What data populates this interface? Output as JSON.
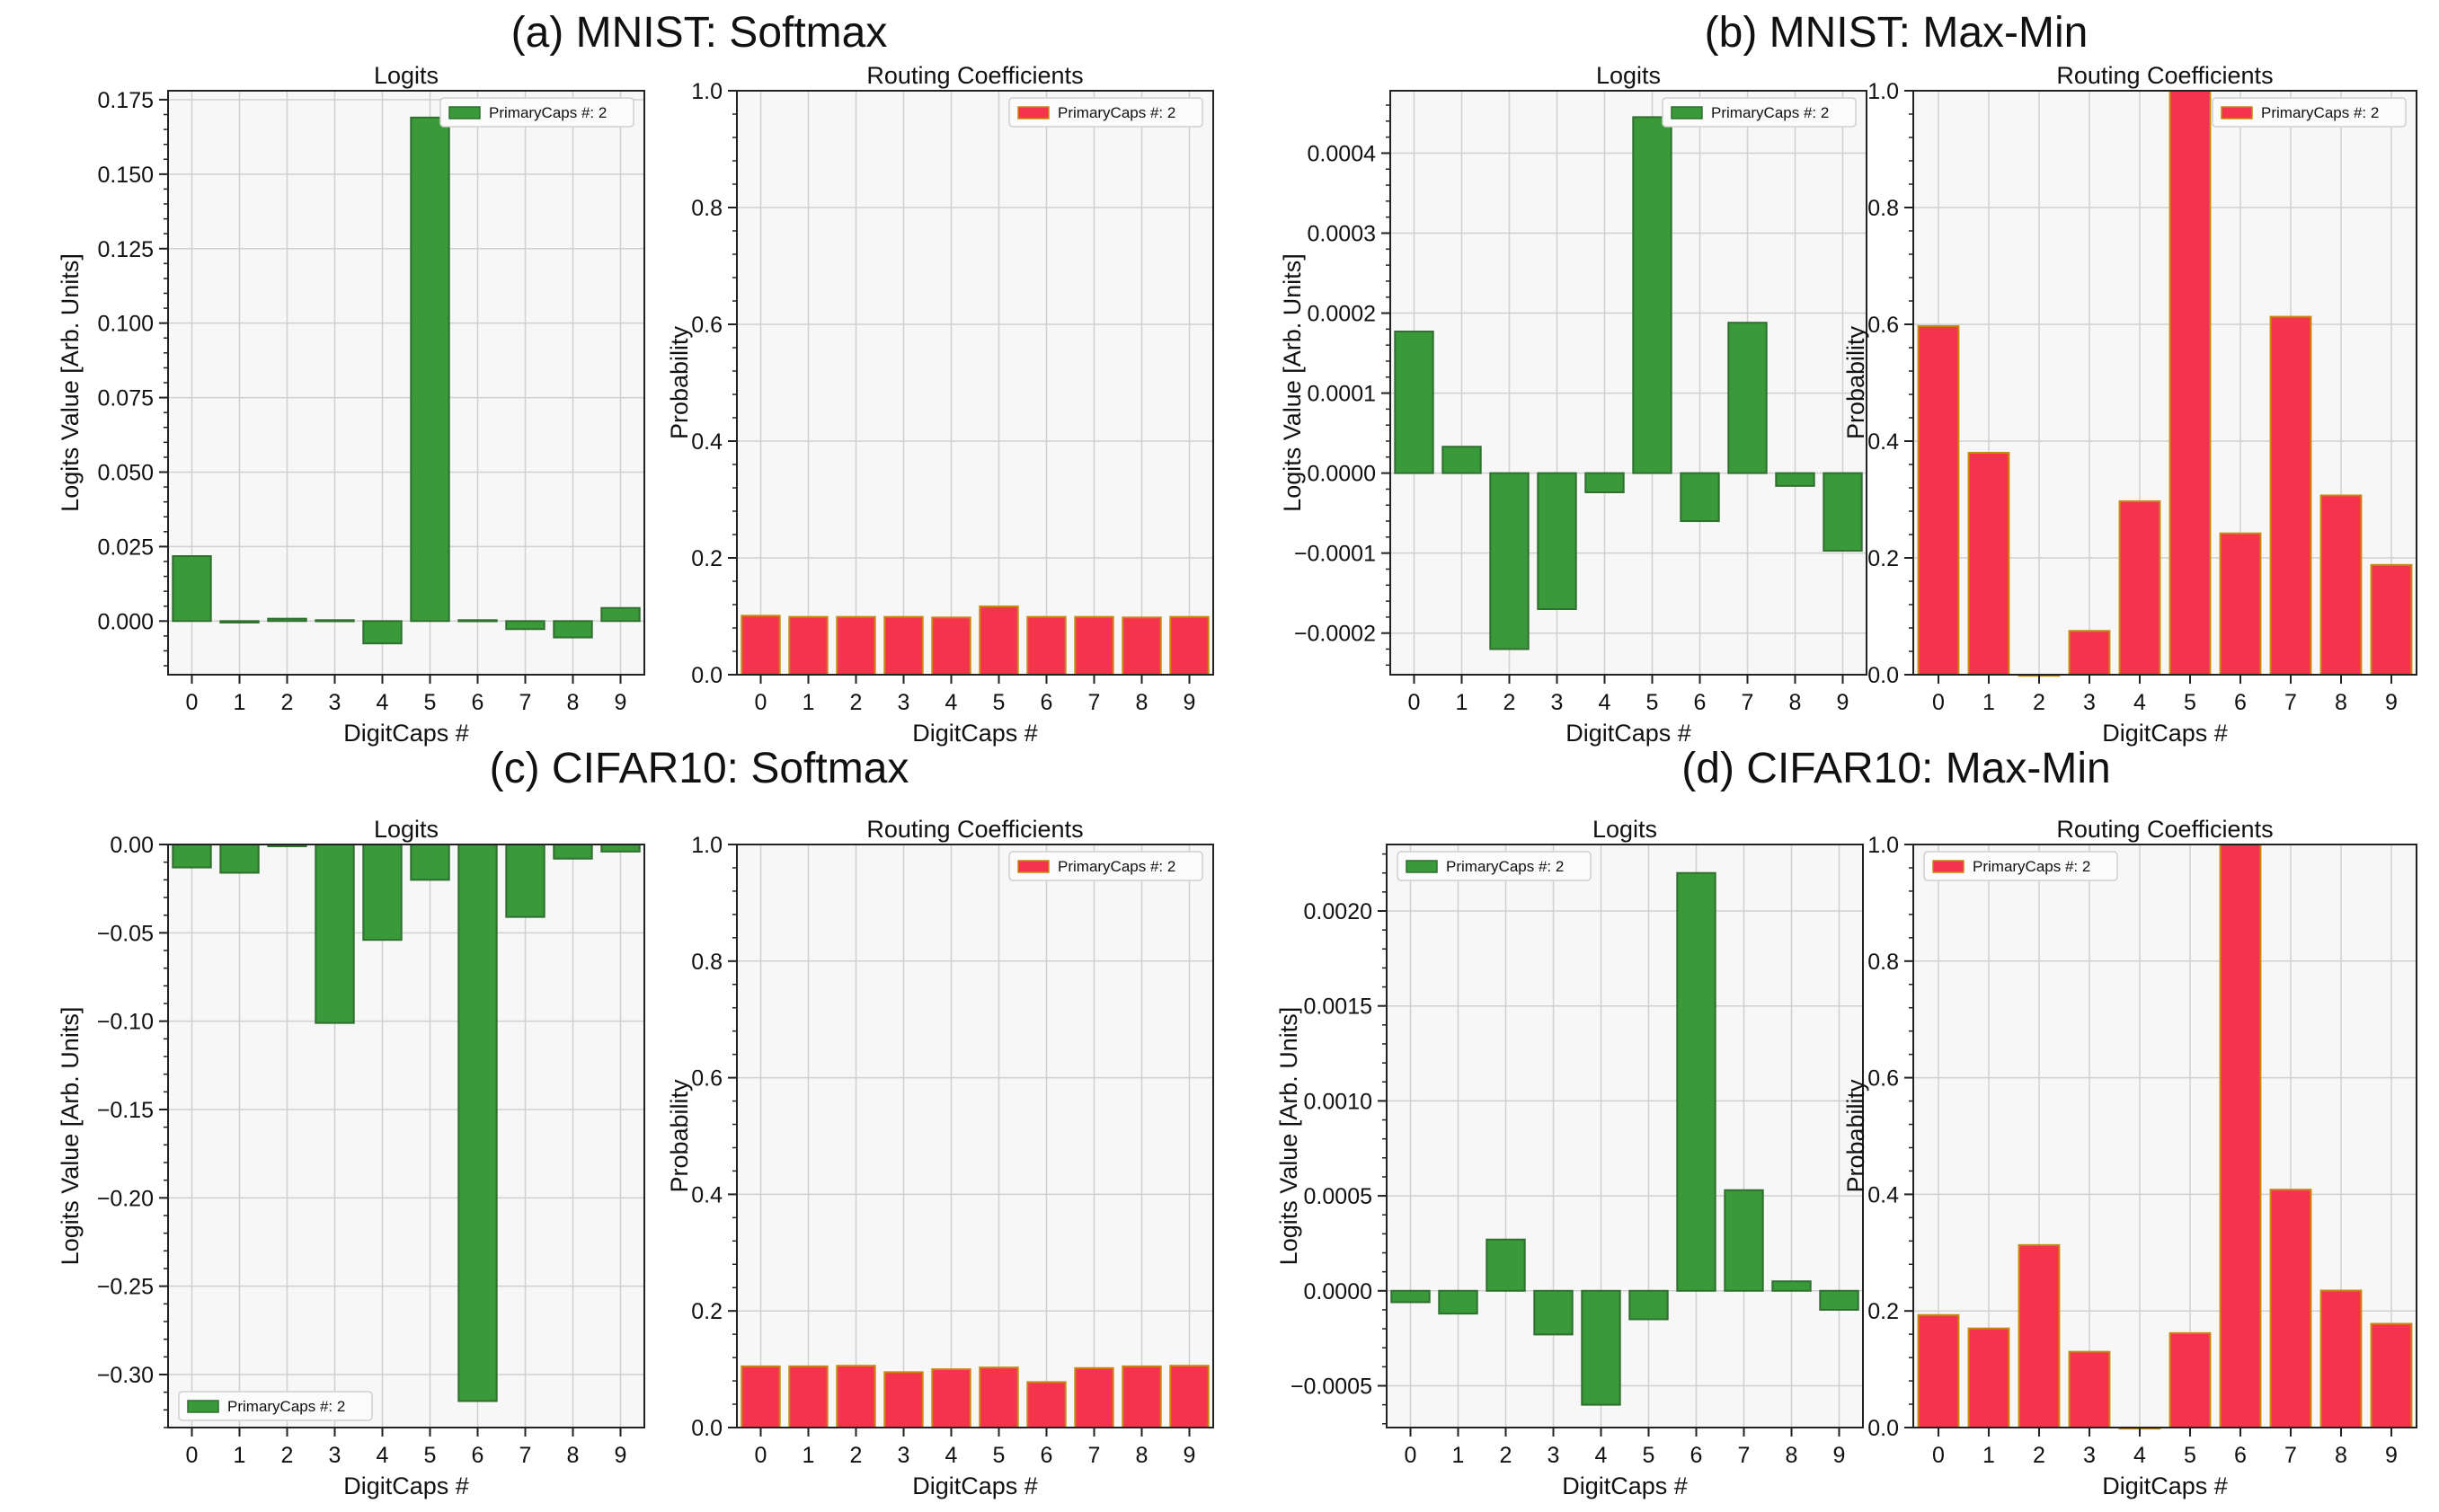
{
  "colors": {
    "logit_bar": "#3a9a3a",
    "logit_edge": "#2f6f2f",
    "routing_bar": "#f5334d",
    "routing_edge": "#c78a10",
    "plot_bg": "#f7f7f7",
    "grid": "#d0d0d0"
  },
  "chart_data": [
    {
      "panel_title": "(a) MNIST: Softmax",
      "charts": [
        {
          "type": "bar",
          "title": "Logits",
          "xlabel": "DigitCaps #",
          "ylabel": "Logits Value [Arb. Units]",
          "categories": [
            "0",
            "1",
            "2",
            "3",
            "4",
            "5",
            "6",
            "7",
            "8",
            "9"
          ],
          "series": [
            {
              "name": "PrimaryCaps #: 2",
              "values": [
                0.0218,
                -0.0005,
                0.0008,
                0.0003,
                -0.0075,
                0.169,
                0.0003,
                -0.0027,
                -0.0055,
                0.0044
              ]
            }
          ],
          "ylim": [
            -0.018,
            0.178
          ],
          "yticks": [
            {
              "v": 0,
              "t": "0.000"
            },
            {
              "v": 0.025,
              "t": "0.025"
            },
            {
              "v": 0.05,
              "t": "0.050"
            },
            {
              "v": 0.075,
              "t": "0.075"
            },
            {
              "v": 0.1,
              "t": "0.100"
            },
            {
              "v": 0.125,
              "t": "0.125"
            },
            {
              "v": 0.15,
              "t": "0.150"
            },
            {
              "v": 0.175,
              "t": "0.175"
            }
          ],
          "legend": "top-right",
          "grid": true
        },
        {
          "type": "bar",
          "title": "Routing Coefficients",
          "xlabel": "DigitCaps #",
          "ylabel": "Probability",
          "categories": [
            "0",
            "1",
            "2",
            "3",
            "4",
            "5",
            "6",
            "7",
            "8",
            "9"
          ],
          "series": [
            {
              "name": "PrimaryCaps #: 2",
              "values": [
                0.101,
                0.099,
                0.099,
                0.099,
                0.098,
                0.117,
                0.099,
                0.099,
                0.098,
                0.099
              ]
            }
          ],
          "ylim": [
            0,
            1.0
          ],
          "yticks": [
            {
              "v": 0,
              "t": "0.0"
            },
            {
              "v": 0.2,
              "t": "0.2"
            },
            {
              "v": 0.4,
              "t": "0.4"
            },
            {
              "v": 0.6,
              "t": "0.6"
            },
            {
              "v": 0.8,
              "t": "0.8"
            },
            {
              "v": 1.0,
              "t": "1.0"
            }
          ],
          "legend": "top-right",
          "grid": true
        }
      ]
    },
    {
      "panel_title": "(b) MNIST: Max-Min",
      "charts": [
        {
          "type": "bar",
          "title": "Logits",
          "xlabel": "DigitCaps #",
          "ylabel": "Logits Value [Arb. Units]",
          "categories": [
            "0",
            "1",
            "2",
            "3",
            "4",
            "5",
            "6",
            "7",
            "8",
            "9"
          ],
          "series": [
            {
              "name": "PrimaryCaps #: 2",
              "values": [
                0.000177,
                3.3e-05,
                -0.00022,
                -0.00017,
                -2.4e-05,
                0.000445,
                -6e-05,
                0.000188,
                -1.6e-05,
                -9.7e-05
              ]
            }
          ],
          "ylim": [
            -0.000252,
            0.000478
          ],
          "yticks": [
            {
              "v": -0.0002,
              "t": "−0.0002"
            },
            {
              "v": -0.0001,
              "t": "−0.0001"
            },
            {
              "v": 0,
              "t": "0.0000"
            },
            {
              "v": 0.0001,
              "t": "0.0001"
            },
            {
              "v": 0.0002,
              "t": "0.0002"
            },
            {
              "v": 0.0003,
              "t": "0.0003"
            },
            {
              "v": 0.0004,
              "t": "0.0004"
            }
          ],
          "legend": "top-right",
          "grid": true
        },
        {
          "type": "bar",
          "title": "Routing Coefficients",
          "xlabel": "DigitCaps #",
          "ylabel": "Probability",
          "categories": [
            "0",
            "1",
            "2",
            "3",
            "4",
            "5",
            "6",
            "7",
            "8",
            "9"
          ],
          "series": [
            {
              "name": "PrimaryCaps #: 2",
              "values": [
                0.597,
                0.38,
                0.0,
                0.075,
                0.297,
                1.0,
                0.242,
                0.613,
                0.307,
                0.188
              ]
            }
          ],
          "ylim": [
            0,
            1.0
          ],
          "yticks": [
            {
              "v": 0,
              "t": "0.0"
            },
            {
              "v": 0.2,
              "t": "0.2"
            },
            {
              "v": 0.4,
              "t": "0.4"
            },
            {
              "v": 0.6,
              "t": "0.6"
            },
            {
              "v": 0.8,
              "t": "0.8"
            },
            {
              "v": 1.0,
              "t": "1.0"
            }
          ],
          "legend": "top-right",
          "grid": true
        }
      ]
    },
    {
      "panel_title": "(c) CIFAR10: Softmax",
      "charts": [
        {
          "type": "bar",
          "title": "Logits",
          "xlabel": "DigitCaps #",
          "ylabel": "Logits Value [Arb. Units]",
          "categories": [
            "0",
            "1",
            "2",
            "3",
            "4",
            "5",
            "6",
            "7",
            "8",
            "9"
          ],
          "series": [
            {
              "name": "PrimaryCaps #: 2",
              "values": [
                -0.013,
                -0.016,
                -0.001,
                -0.101,
                -0.054,
                -0.02,
                -0.315,
                -0.041,
                -0.008,
                -0.004
              ]
            }
          ],
          "ylim": [
            -0.33,
            0.0
          ],
          "yticks": [
            {
              "v": -0.3,
              "t": "−0.30"
            },
            {
              "v": -0.25,
              "t": "−0.25"
            },
            {
              "v": -0.2,
              "t": "−0.20"
            },
            {
              "v": -0.15,
              "t": "−0.15"
            },
            {
              "v": -0.1,
              "t": "−0.10"
            },
            {
              "v": -0.05,
              "t": "−0.05"
            },
            {
              "v": 0,
              "t": "0.00"
            }
          ],
          "legend": "bottom-left",
          "grid": true
        },
        {
          "type": "bar",
          "title": "Routing Coefficients",
          "xlabel": "DigitCaps #",
          "ylabel": "Probability",
          "categories": [
            "0",
            "1",
            "2",
            "3",
            "4",
            "5",
            "6",
            "7",
            "8",
            "9"
          ],
          "series": [
            {
              "name": "PrimaryCaps #: 2",
              "values": [
                0.105,
                0.105,
                0.106,
                0.095,
                0.1,
                0.103,
                0.078,
                0.102,
                0.105,
                0.106
              ]
            }
          ],
          "ylim": [
            0,
            1.0
          ],
          "yticks": [
            {
              "v": 0,
              "t": "0.0"
            },
            {
              "v": 0.2,
              "t": "0.2"
            },
            {
              "v": 0.4,
              "t": "0.4"
            },
            {
              "v": 0.6,
              "t": "0.6"
            },
            {
              "v": 0.8,
              "t": "0.8"
            },
            {
              "v": 1.0,
              "t": "1.0"
            }
          ],
          "legend": "top-right",
          "grid": true
        }
      ]
    },
    {
      "panel_title": "(d) CIFAR10: Max-Min",
      "charts": [
        {
          "type": "bar",
          "title": "Logits",
          "xlabel": "DigitCaps #",
          "ylabel": "Logits Value [Arb. Units]",
          "categories": [
            "0",
            "1",
            "2",
            "3",
            "4",
            "5",
            "6",
            "7",
            "8",
            "9"
          ],
          "series": [
            {
              "name": "PrimaryCaps #: 2",
              "values": [
                -6e-05,
                -0.00012,
                0.00027,
                -0.00023,
                -0.0006,
                -0.00015,
                0.0022,
                0.00053,
                5e-05,
                -0.0001
              ]
            }
          ],
          "ylim": [
            -0.00072,
            0.00235
          ],
          "yticks": [
            {
              "v": -0.0005,
              "t": "−0.0005"
            },
            {
              "v": 0,
              "t": "0.0000"
            },
            {
              "v": 0.0005,
              "t": "0.0005"
            },
            {
              "v": 0.001,
              "t": "0.0010"
            },
            {
              "v": 0.0015,
              "t": "0.0015"
            },
            {
              "v": 0.002,
              "t": "0.0020"
            }
          ],
          "legend": "top-left",
          "grid": true
        },
        {
          "type": "bar",
          "title": "Routing Coefficients",
          "xlabel": "DigitCaps #",
          "ylabel": "Probability",
          "categories": [
            "0",
            "1",
            "2",
            "3",
            "4",
            "5",
            "6",
            "7",
            "8",
            "9"
          ],
          "series": [
            {
              "name": "PrimaryCaps #: 2",
              "values": [
                0.193,
                0.17,
                0.313,
                0.13,
                0.0,
                0.162,
                1.0,
                0.408,
                0.235,
                0.178
              ]
            }
          ],
          "ylim": [
            0,
            1.0
          ],
          "yticks": [
            {
              "v": 0,
              "t": "0.0"
            },
            {
              "v": 0.2,
              "t": "0.2"
            },
            {
              "v": 0.4,
              "t": "0.4"
            },
            {
              "v": 0.6,
              "t": "0.6"
            },
            {
              "v": 0.8,
              "t": "0.8"
            },
            {
              "v": 1.0,
              "t": "1.0"
            }
          ],
          "legend": "top-left",
          "grid": true
        }
      ]
    }
  ]
}
